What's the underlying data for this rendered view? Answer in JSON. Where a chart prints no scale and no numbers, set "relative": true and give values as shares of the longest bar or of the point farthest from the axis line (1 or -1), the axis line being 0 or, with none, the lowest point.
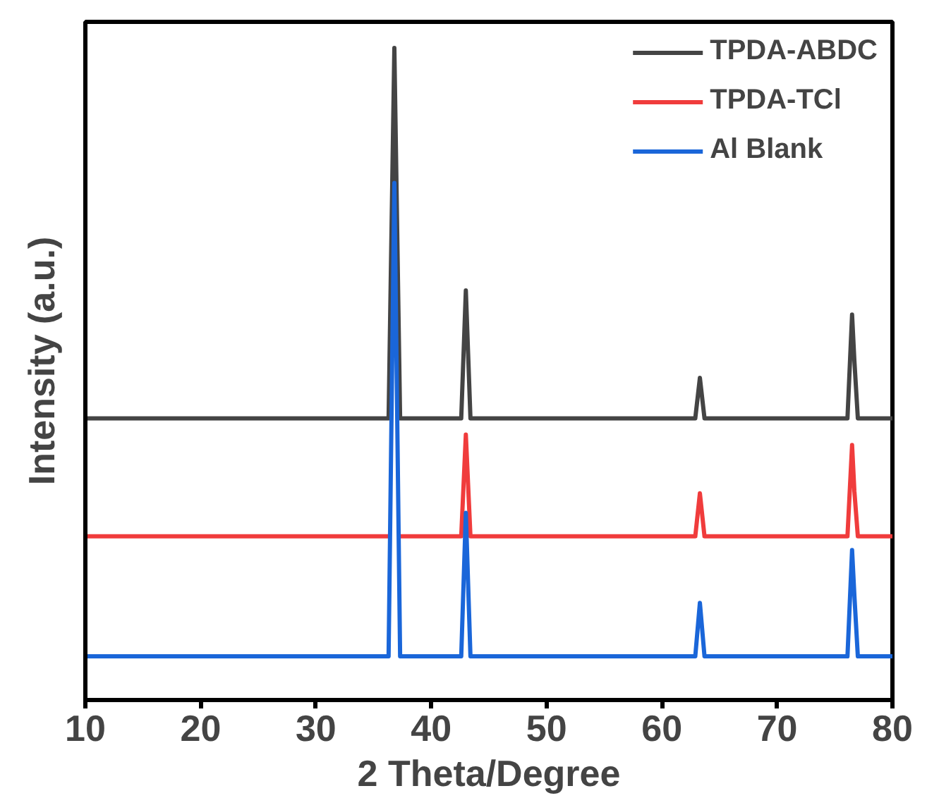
{
  "chart_data": {
    "type": "line",
    "relative": true,
    "xlabel": "2 Theta/Degree",
    "ylabel": "Intensity (a.u.)",
    "xlim": [
      10,
      80
    ],
    "xticks": [
      10,
      20,
      30,
      40,
      50,
      60,
      70,
      80
    ],
    "x": [
      10,
      36.3,
      36.8,
      37.3,
      42.6,
      43.0,
      43.4,
      62.9,
      63.3,
      63.7,
      76.1,
      76.5,
      76.7,
      77.0,
      80
    ],
    "series": [
      {
        "name": "TPDA-ABDC",
        "color": "#444444",
        "values": [
          0.432,
          0.432,
          1.0,
          0.432,
          0.432,
          0.628,
          0.432,
          0.432,
          0.494,
          0.432,
          0.432,
          0.591,
          0.52,
          0.432,
          0.432
        ]
      },
      {
        "name": "TPDA-TCl",
        "color": "#f03c3c",
        "values": [
          0.251,
          0.251,
          null,
          0.251,
          0.251,
          0.407,
          0.251,
          0.251,
          0.317,
          0.251,
          0.251,
          0.391,
          0.32,
          0.251,
          0.251
        ]
      },
      {
        "name": "Al Blank",
        "color": "#1a66d9",
        "values": [
          0.067,
          0.067,
          0.793,
          0.067,
          0.067,
          0.287,
          0.067,
          0.067,
          0.149,
          0.067,
          0.067,
          0.23,
          0.16,
          0.067,
          0.067
        ]
      }
    ],
    "grid": false,
    "legend": "top right"
  }
}
